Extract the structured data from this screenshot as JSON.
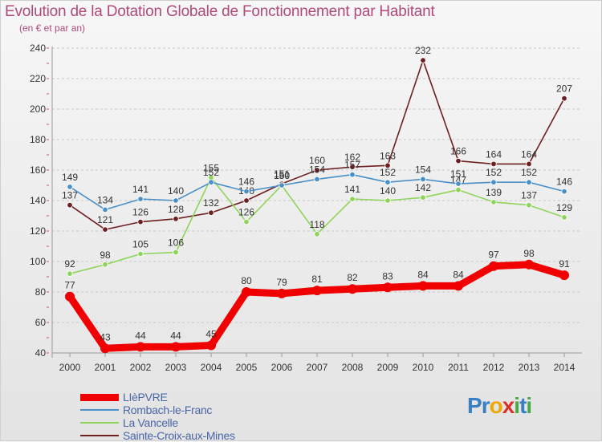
{
  "title": "Evolution de la Dotation Globale de Fonctionnement par Habitant",
  "subtitle": "(en € et par an)",
  "logo": {
    "text": "Proxiti",
    "letters": [
      {
        "ch": "P",
        "color": "#3a7fc4"
      },
      {
        "ch": "r",
        "color": "#3a7fc4"
      },
      {
        "ch": "o",
        "color": "#f0a800"
      },
      {
        "ch": "x",
        "color": "#d8322a"
      },
      {
        "ch": "i",
        "color": "#48a848"
      },
      {
        "ch": "t",
        "color": "#3a7fc4"
      },
      {
        "ch": "i",
        "color": "#48a848"
      }
    ]
  },
  "chart_data": {
    "type": "line",
    "title": "Evolution de la Dotation Globale de Fonctionnement par Habitant",
    "ylabel": "(en € et par an)",
    "xlabel": "",
    "ylim": [
      40,
      240
    ],
    "yticks": [
      40,
      60,
      80,
      100,
      120,
      140,
      160,
      180,
      200,
      220,
      240
    ],
    "x": [
      "2000",
      "2001",
      "2002",
      "2003",
      "2004",
      "2005",
      "2006",
      "2007",
      "2008",
      "2009",
      "2010",
      "2011",
      "2012",
      "2013",
      "2014"
    ],
    "grid": "horizontal",
    "legend_position": "bottom-left",
    "series": [
      {
        "name": "Sainte-Croix-aux-Mines",
        "color": "#6e1f22",
        "values": [
          137,
          121,
          126,
          128,
          132,
          140,
          151,
          160,
          162,
          163,
          232,
          166,
          164,
          164,
          207
        ]
      },
      {
        "name": "La Vancelle",
        "color": "#8fd45a",
        "values": [
          92,
          98,
          105,
          106,
          155,
          126,
          150,
          118,
          141,
          140,
          142,
          147,
          139,
          137,
          129
        ]
      },
      {
        "name": "Rombach-le-Franc",
        "color": "#4a90c8",
        "values": [
          149,
          134,
          141,
          140,
          152,
          146,
          150,
          154,
          157,
          152,
          154,
          151,
          152,
          152,
          146
        ]
      },
      {
        "name": "LIèPVRE",
        "color": "#f00000",
        "values": [
          77,
          43,
          44,
          44,
          45,
          80,
          79,
          81,
          82,
          83,
          84,
          84,
          97,
          98,
          91
        ]
      }
    ],
    "legend": [
      "LIèPVRE",
      "Rombach-le-Franc",
      "La Vancelle",
      "Sainte-Croix-aux-Mines"
    ]
  }
}
